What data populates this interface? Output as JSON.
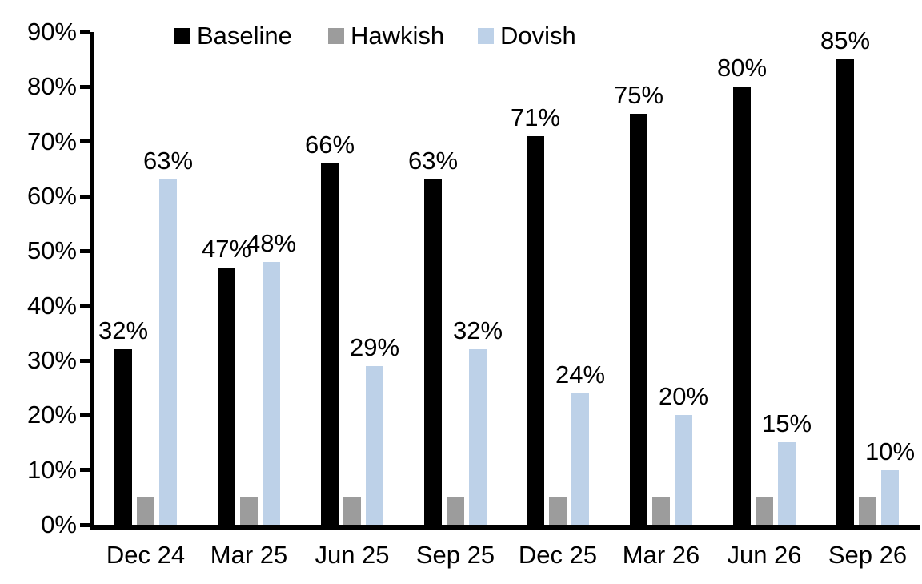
{
  "chart_data": {
    "type": "bar",
    "title": "",
    "xlabel": "",
    "ylabel": "",
    "categories": [
      "Dec 24",
      "Mar 25",
      "Jun 25",
      "Sep 25",
      "Dec 25",
      "Mar 26",
      "Jun 26",
      "Sep 26"
    ],
    "series": [
      {
        "name": "Baseline",
        "color": "#000000",
        "values": [
          32,
          47,
          66,
          63,
          71,
          75,
          80,
          85
        ],
        "data_labels": true
      },
      {
        "name": "Hawkish",
        "color": "#9c9c9c",
        "values": [
          5,
          5,
          5,
          5,
          5,
          5,
          5,
          5
        ],
        "data_labels": false
      },
      {
        "name": "Dovish",
        "color": "#bdd1e8",
        "values": [
          63,
          48,
          29,
          32,
          24,
          20,
          15,
          10
        ],
        "data_labels": true
      }
    ],
    "data_label_suffix": "%",
    "ylim": [
      0,
      90
    ],
    "ytick_step": 10,
    "ytick_labels": [
      "0%",
      "10%",
      "20%",
      "30%",
      "40%",
      "50%",
      "60%",
      "70%",
      "80%",
      "90%"
    ],
    "grid": false,
    "legend_position": "top",
    "legend_entries": [
      "Baseline",
      "Hawkish",
      "Dovish"
    ],
    "axis_color": "#000000",
    "text_color": "#000000",
    "background_color": "#ffffff"
  }
}
